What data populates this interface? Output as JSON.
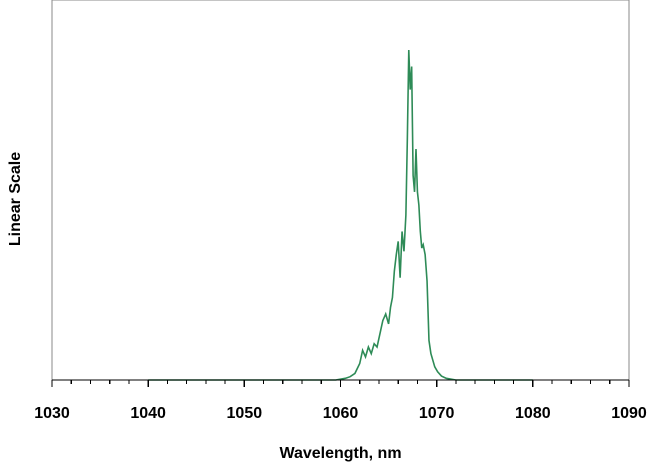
{
  "chart_data": {
    "type": "line",
    "title": "",
    "xlabel": "Wavelength, nm",
    "ylabel": "Linear Scale",
    "xlim": [
      1030,
      1090
    ],
    "ylim": [
      0,
      1
    ],
    "x_ticks": [
      1030,
      1040,
      1050,
      1060,
      1070,
      1080,
      1090
    ],
    "x_tick_labels": [
      "1030",
      "1040",
      "1050",
      "1060",
      "1070",
      "1080",
      "1090"
    ],
    "y_ticks": [],
    "grid": false,
    "legend": "none",
    "colors": {
      "series": "#2e8b57",
      "axis": "#000000",
      "frame": "#8a8a8a"
    },
    "series": [
      {
        "x": [
          1040,
          1045,
          1050,
          1055,
          1059.5,
          1060.5,
          1061.0,
          1061.5,
          1062.0,
          1062.3,
          1062.6,
          1062.9,
          1063.2,
          1063.5,
          1063.8,
          1064.1,
          1064.4,
          1064.7,
          1065.0,
          1065.2,
          1065.4,
          1065.6,
          1065.8,
          1066.0,
          1066.2,
          1066.4,
          1066.6,
          1066.8,
          1066.95,
          1067.1,
          1067.25,
          1067.4,
          1067.55,
          1067.7,
          1067.85,
          1068.0,
          1068.15,
          1068.3,
          1068.45,
          1068.6,
          1068.8,
          1069.0,
          1069.2,
          1069.4,
          1069.6,
          1069.8,
          1070.1,
          1070.5,
          1071,
          1072,
          1075,
          1080
        ],
        "y": [
          0.0,
          0.0,
          0.0,
          0.0,
          0.0,
          0.005,
          0.01,
          0.02,
          0.05,
          0.09,
          0.07,
          0.1,
          0.08,
          0.11,
          0.1,
          0.14,
          0.18,
          0.2,
          0.17,
          0.22,
          0.25,
          0.33,
          0.38,
          0.42,
          0.31,
          0.45,
          0.39,
          0.5,
          0.73,
          1.0,
          0.88,
          0.95,
          0.62,
          0.57,
          0.7,
          0.57,
          0.53,
          0.45,
          0.4,
          0.41,
          0.38,
          0.3,
          0.12,
          0.08,
          0.06,
          0.04,
          0.025,
          0.012,
          0.005,
          0.0,
          0.0,
          0.0
        ]
      }
    ]
  }
}
